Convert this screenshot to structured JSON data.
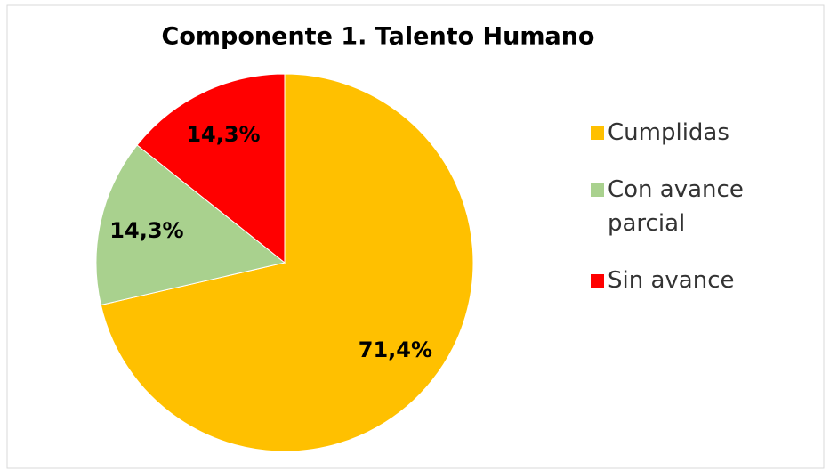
{
  "chart_data": {
    "type": "pie",
    "title": "Componente 1. Talento Humano",
    "categories": [
      "Cumplidas",
      "Con avance parcial",
      "Sin avance"
    ],
    "values": [
      71.4,
      14.3,
      14.3
    ],
    "value_labels": [
      "71,4%",
      "14,3%",
      "14,3%"
    ],
    "colors": [
      "#ffc000",
      "#a9d18e",
      "#ff0000"
    ],
    "legend": "right"
  }
}
